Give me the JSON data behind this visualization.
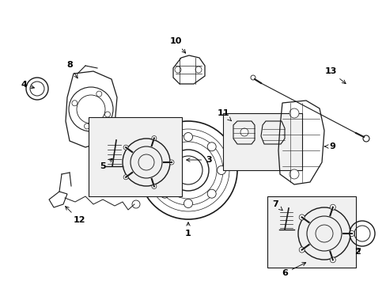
{
  "bg_color": "#ffffff",
  "fig_width": 4.89,
  "fig_height": 3.6,
  "dpi": 100,
  "line_color": "#1a1a1a",
  "box_fill": "#f0f0f0",
  "lw": 0.7
}
